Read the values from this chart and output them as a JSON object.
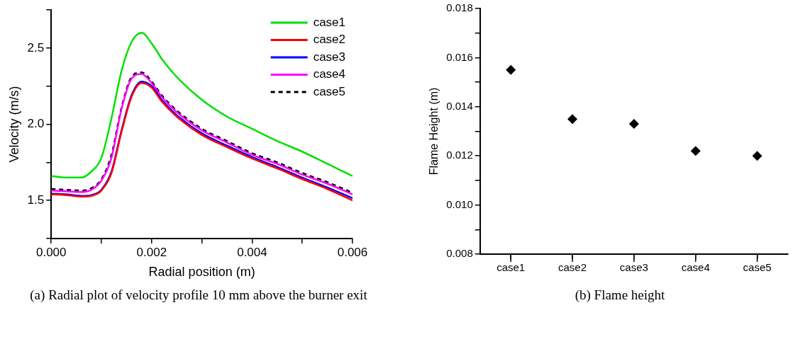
{
  "chart_data": [
    {
      "type": "line",
      "title": "(a) Radial plot of velocity profile 10 mm above the burner exit",
      "xlabel": "Radial position (m)",
      "ylabel": "Velocity (m/s)",
      "x": [
        0,
        0.0003,
        0.0006,
        0.0008,
        0.001,
        0.0012,
        0.0014,
        0.0016,
        0.0018,
        0.002,
        0.0022,
        0.0025,
        0.003,
        0.0035,
        0.004,
        0.0045,
        0.005,
        0.0055,
        0.006
      ],
      "series": [
        {
          "name": "case1",
          "color": "#00e000",
          "values": [
            1.66,
            1.65,
            1.65,
            1.69,
            1.78,
            2.04,
            2.35,
            2.54,
            2.6,
            2.53,
            2.43,
            2.31,
            2.16,
            2.05,
            1.97,
            1.89,
            1.82,
            1.74,
            1.66
          ]
        },
        {
          "name": "case2",
          "color": "#ff0000",
          "values": [
            1.54,
            1.535,
            1.525,
            1.53,
            1.565,
            1.68,
            1.95,
            2.18,
            2.27,
            2.24,
            2.15,
            2.05,
            1.93,
            1.85,
            1.775,
            1.71,
            1.64,
            1.575,
            1.5
          ]
        },
        {
          "name": "case3",
          "color": "#0000ff",
          "values": [
            1.545,
            1.54,
            1.53,
            1.535,
            1.57,
            1.69,
            1.96,
            2.19,
            2.28,
            2.25,
            2.16,
            2.06,
            1.94,
            1.86,
            1.785,
            1.72,
            1.65,
            1.585,
            1.515
          ]
        },
        {
          "name": "case4",
          "color": "#ff00ff",
          "values": [
            1.565,
            1.56,
            1.555,
            1.57,
            1.63,
            1.78,
            2.1,
            2.3,
            2.33,
            2.27,
            2.18,
            2.08,
            1.96,
            1.88,
            1.8,
            1.74,
            1.67,
            1.61,
            1.54
          ]
        },
        {
          "name": "case5",
          "color": "#000000",
          "line_style": "dashed",
          "values": [
            1.575,
            1.57,
            1.565,
            1.58,
            1.64,
            1.8,
            2.11,
            2.31,
            2.34,
            2.28,
            2.19,
            2.09,
            1.97,
            1.89,
            1.81,
            1.75,
            1.68,
            1.62,
            1.55
          ]
        }
      ],
      "xlim": [
        0,
        0.006
      ],
      "xticks": [
        {
          "value": 0,
          "label": "0.000"
        },
        {
          "value": 0.001,
          "label": null
        },
        {
          "value": 0.002,
          "label": "0.002"
        },
        {
          "value": 0.003,
          "label": null
        },
        {
          "value": 0.004,
          "label": "0.004"
        },
        {
          "value": 0.005,
          "label": null
        },
        {
          "value": 0.006,
          "label": "0.006"
        }
      ],
      "ylim": [
        1.25,
        2.75
      ],
      "yticks": [
        {
          "value": 1.25,
          "label": null
        },
        {
          "value": 1.5,
          "label": "1.5"
        },
        {
          "value": 1.75,
          "label": null
        },
        {
          "value": 2,
          "label": "2.0"
        },
        {
          "value": 2.25,
          "label": null
        },
        {
          "value": 2.5,
          "label": "2.5"
        },
        {
          "value": 2.75,
          "label": null
        }
      ],
      "grid": false,
      "legend": "top right",
      "marker": "none",
      "line_style": "solid"
    },
    {
      "type": "scatter",
      "title": "(b) Flame height",
      "ylabel": "Flame Height (m)",
      "categories": [
        "case1",
        "case2",
        "case3",
        "case4",
        "case5"
      ],
      "series": [
        {
          "color": "#000000",
          "values": [
            0.0155,
            0.0135,
            0.0133,
            0.0122,
            0.012
          ]
        }
      ],
      "ylim": [
        0.008,
        0.018
      ],
      "yticks": [
        {
          "value": 0.008,
          "label": "0.008"
        },
        {
          "value": 0.009,
          "label": null
        },
        {
          "value": 0.01,
          "label": "0.010"
        },
        {
          "value": 0.011,
          "label": null
        },
        {
          "value": 0.012,
          "label": "0.012"
        },
        {
          "value": 0.013,
          "label": null
        },
        {
          "value": 0.014,
          "label": "0.014"
        },
        {
          "value": 0.015,
          "label": null
        },
        {
          "value": 0.016,
          "label": "0.016"
        },
        {
          "value": 0.017,
          "label": null
        },
        {
          "value": 0.018,
          "label": "0.018"
        }
      ],
      "grid": false,
      "legend": false,
      "marker": "diamond"
    }
  ]
}
